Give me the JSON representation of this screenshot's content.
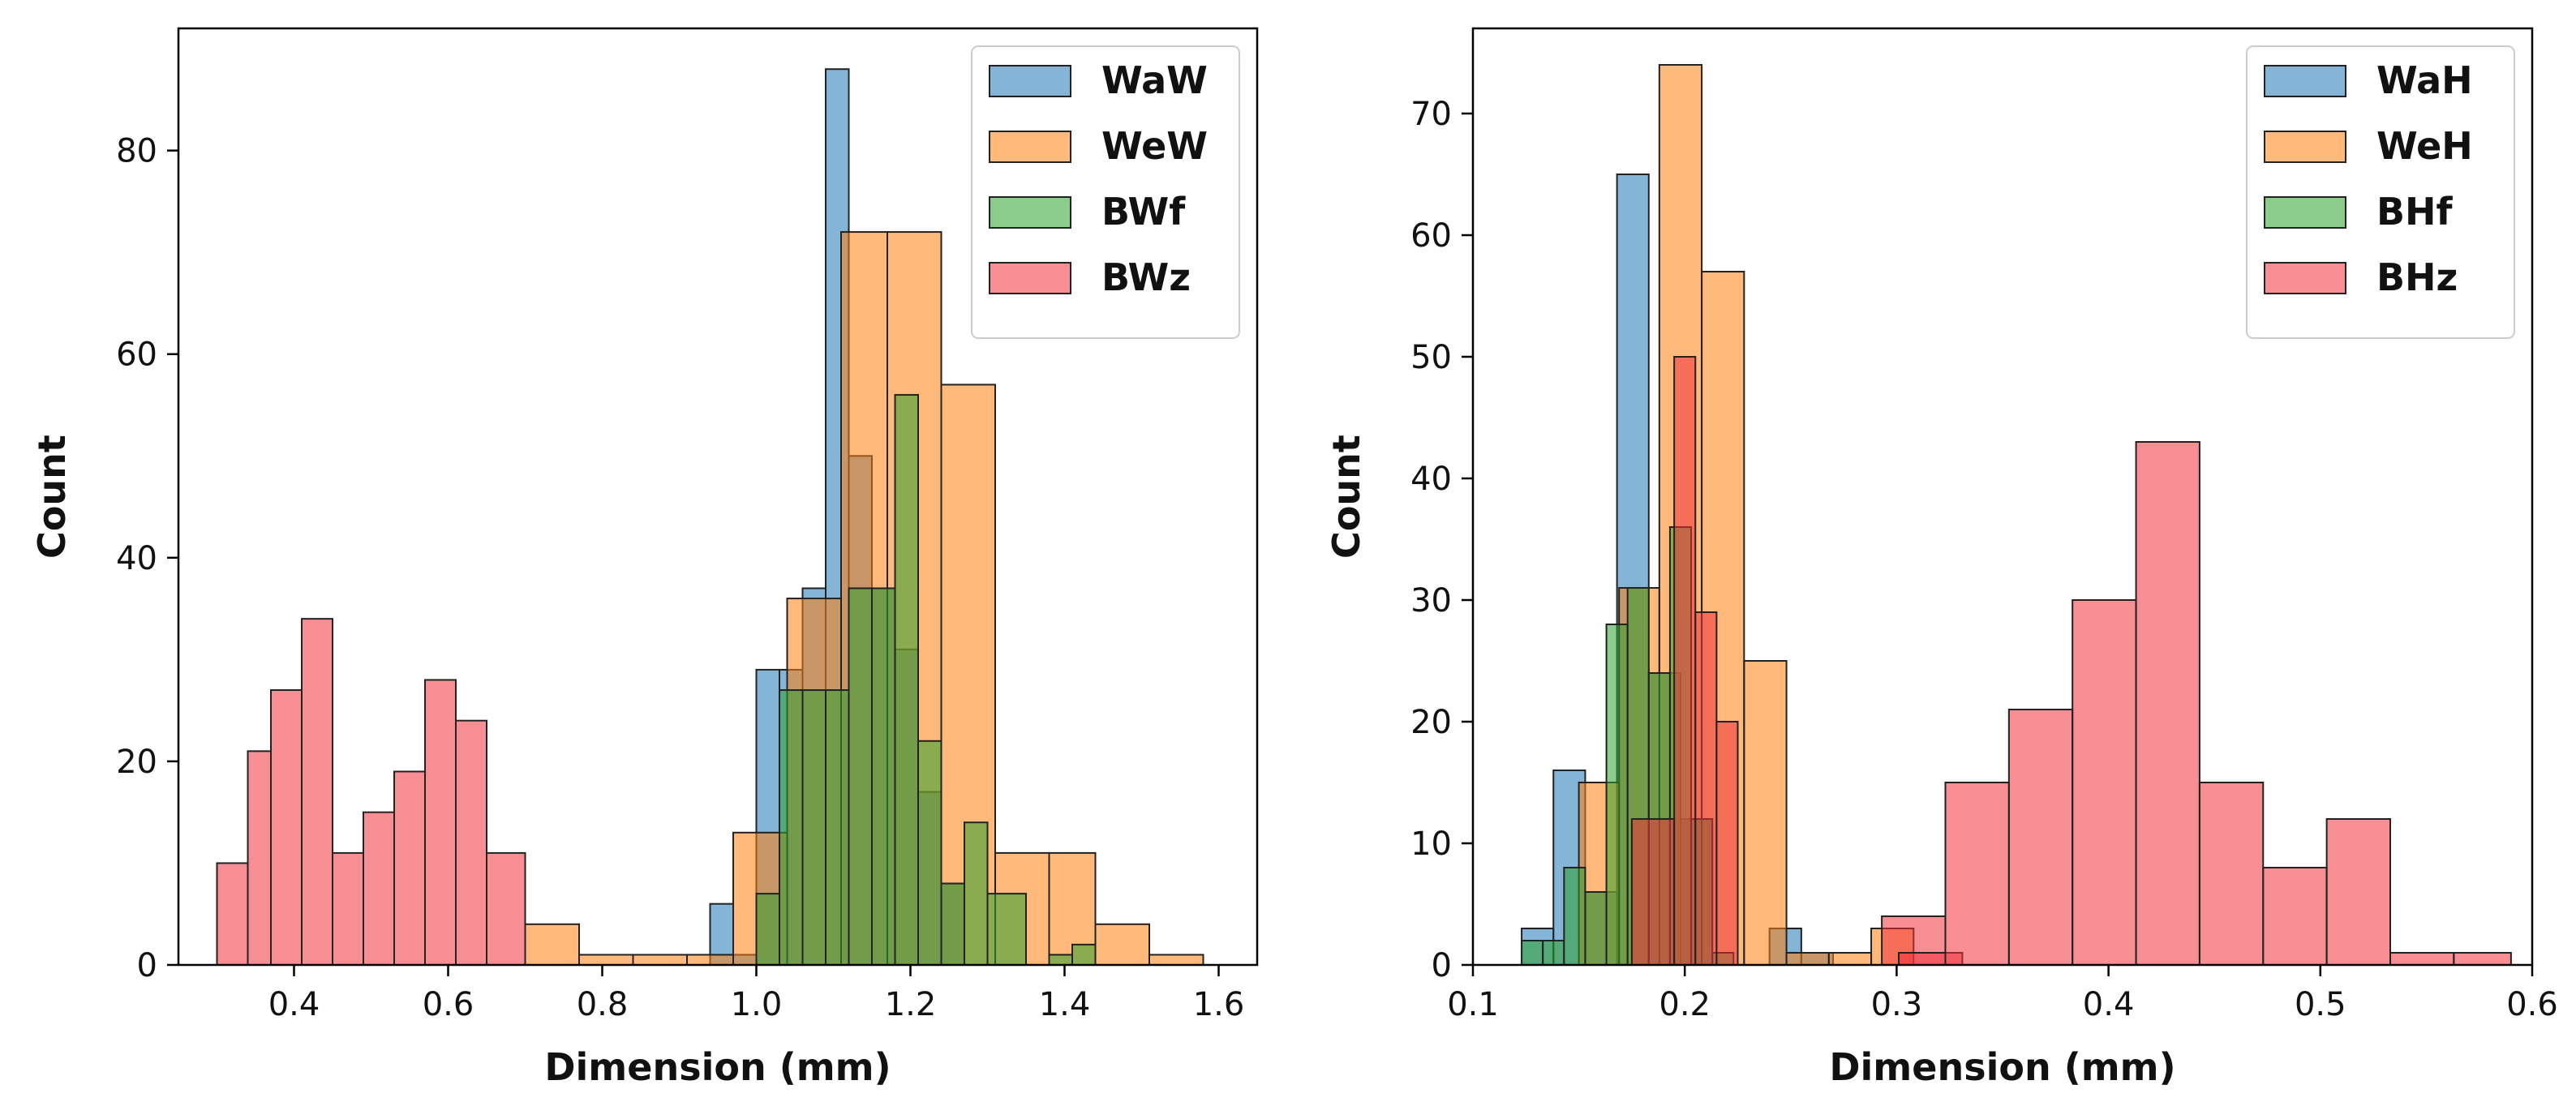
{
  "chart_data": [
    {
      "type": "bar",
      "subtype": "histogram",
      "xlabel": "Dimension (mm)",
      "ylabel": "Count",
      "xlim": [
        0.25,
        1.65
      ],
      "ylim": [
        0,
        92
      ],
      "xticks": [
        0.4,
        0.6,
        0.8,
        1.0,
        1.2,
        1.4,
        1.6
      ],
      "xtick_labels": [
        "0.4",
        "0.6",
        "0.8",
        "1.0",
        "1.2",
        "1.4",
        "1.6"
      ],
      "yticks": [
        0,
        20,
        40,
        60,
        80
      ],
      "ytick_labels": [
        "0",
        "20",
        "40",
        "60",
        "80"
      ],
      "legend_position": "top-right",
      "series": [
        {
          "name": "WaW",
          "color": "#1f77b4",
          "bins": [
            [
              0.94,
              0.97,
              6
            ],
            [
              0.97,
              1.0,
              1
            ],
            [
              1.0,
              1.03,
              29
            ],
            [
              1.03,
              1.06,
              29
            ],
            [
              1.06,
              1.09,
              37
            ],
            [
              1.09,
              1.12,
              88
            ],
            [
              1.12,
              1.15,
              50
            ],
            [
              1.15,
              1.18,
              37
            ],
            [
              1.18,
              1.21,
              31
            ],
            [
              1.21,
              1.24,
              17
            ],
            [
              1.24,
              1.27,
              8
            ]
          ]
        },
        {
          "name": "WeW",
          "color": "#ff7f0e",
          "bins": [
            [
              0.7,
              0.77,
              4
            ],
            [
              0.77,
              0.84,
              1
            ],
            [
              0.84,
              0.91,
              1
            ],
            [
              0.91,
              0.97,
              1
            ],
            [
              0.97,
              1.04,
              13
            ],
            [
              1.04,
              1.11,
              36
            ],
            [
              1.11,
              1.17,
              72
            ],
            [
              1.17,
              1.24,
              72
            ],
            [
              1.24,
              1.31,
              57
            ],
            [
              1.31,
              1.38,
              11
            ],
            [
              1.38,
              1.44,
              11
            ],
            [
              1.44,
              1.51,
              4
            ],
            [
              1.51,
              1.58,
              1
            ]
          ]
        },
        {
          "name": "BWf",
          "color": "#2ca02c",
          "bins": [
            [
              1.0,
              1.03,
              7
            ],
            [
              1.03,
              1.06,
              27
            ],
            [
              1.06,
              1.09,
              27
            ],
            [
              1.09,
              1.12,
              27
            ],
            [
              1.12,
              1.15,
              37
            ],
            [
              1.15,
              1.18,
              37
            ],
            [
              1.18,
              1.21,
              56
            ],
            [
              1.21,
              1.24,
              22
            ],
            [
              1.24,
              1.27,
              8
            ],
            [
              1.27,
              1.3,
              14
            ],
            [
              1.3,
              1.35,
              7
            ],
            [
              1.38,
              1.41,
              1
            ],
            [
              1.41,
              1.44,
              2
            ]
          ]
        },
        {
          "name": "BWz",
          "color": "#f0323c",
          "bins": [
            [
              0.3,
              0.34,
              10
            ],
            [
              0.34,
              0.37,
              21
            ],
            [
              0.37,
              0.41,
              27
            ],
            [
              0.41,
              0.45,
              34
            ],
            [
              0.45,
              0.49,
              11
            ],
            [
              0.49,
              0.53,
              15
            ],
            [
              0.53,
              0.57,
              19
            ],
            [
              0.57,
              0.61,
              28
            ],
            [
              0.61,
              0.65,
              24
            ],
            [
              0.65,
              0.7,
              11
            ]
          ]
        }
      ]
    },
    {
      "type": "bar",
      "subtype": "histogram",
      "xlabel": "Dimension (mm)",
      "ylabel": "Count",
      "xlim": [
        0.1,
        0.6
      ],
      "ylim": [
        0,
        77
      ],
      "xticks": [
        0.1,
        0.2,
        0.3,
        0.4,
        0.5,
        0.6
      ],
      "xtick_labels": [
        "0.1",
        "0.2",
        "0.3",
        "0.4",
        "0.5",
        "0.6"
      ],
      "yticks": [
        0,
        10,
        20,
        30,
        40,
        50,
        60,
        70
      ],
      "ytick_labels": [
        "0",
        "10",
        "20",
        "30",
        "40",
        "50",
        "60",
        "70"
      ],
      "legend_position": "top-right",
      "series": [
        {
          "name": "WaH",
          "color": "#1f77b4",
          "bins": [
            [
              0.123,
              0.138,
              3
            ],
            [
              0.138,
              0.153,
              16
            ],
            [
              0.153,
              0.168,
              6
            ],
            [
              0.168,
              0.183,
              65
            ],
            [
              0.183,
              0.198,
              24
            ],
            [
              0.198,
              0.213,
              12
            ],
            [
              0.24,
              0.255,
              3
            ],
            [
              0.255,
              0.27,
              1
            ]
          ]
        },
        {
          "name": "WeH",
          "color": "#ff7f0e",
          "bins": [
            [
              0.15,
              0.169,
              15
            ],
            [
              0.169,
              0.188,
              31
            ],
            [
              0.188,
              0.208,
              74
            ],
            [
              0.208,
              0.228,
              57
            ],
            [
              0.228,
              0.248,
              25
            ],
            [
              0.248,
              0.268,
              1
            ],
            [
              0.268,
              0.288,
              1
            ],
            [
              0.288,
              0.308,
              3
            ]
          ]
        },
        {
          "name": "BHf",
          "color": "#2ca02c",
          "bins": [
            [
              0.123,
              0.133,
              2
            ],
            [
              0.133,
              0.143,
              2
            ],
            [
              0.143,
              0.153,
              8
            ],
            [
              0.153,
              0.163,
              6
            ],
            [
              0.163,
              0.173,
              28
            ],
            [
              0.173,
              0.183,
              31
            ],
            [
              0.183,
              0.193,
              24
            ],
            [
              0.193,
              0.203,
              36
            ],
            [
              0.203,
              0.213,
              12
            ],
            [
              0.213,
              0.223,
              1
            ]
          ]
        },
        {
          "name": "BHz",
          "color": "#f0323c",
          "bins": [
            [
              0.175,
              0.195,
              12
            ],
            [
              0.195,
              0.205,
              50
            ],
            [
              0.205,
              0.215,
              29
            ],
            [
              0.215,
              0.225,
              20
            ],
            [
              0.293,
              0.323,
              4
            ],
            [
              0.301,
              0.331,
              1
            ],
            [
              0.323,
              0.353,
              15
            ],
            [
              0.353,
              0.383,
              21
            ],
            [
              0.383,
              0.413,
              30
            ],
            [
              0.413,
              0.443,
              43
            ],
            [
              0.443,
              0.473,
              15
            ],
            [
              0.473,
              0.503,
              8
            ],
            [
              0.503,
              0.533,
              12
            ],
            [
              0.533,
              0.563,
              1
            ],
            [
              0.563,
              0.59,
              1
            ]
          ]
        }
      ]
    }
  ]
}
